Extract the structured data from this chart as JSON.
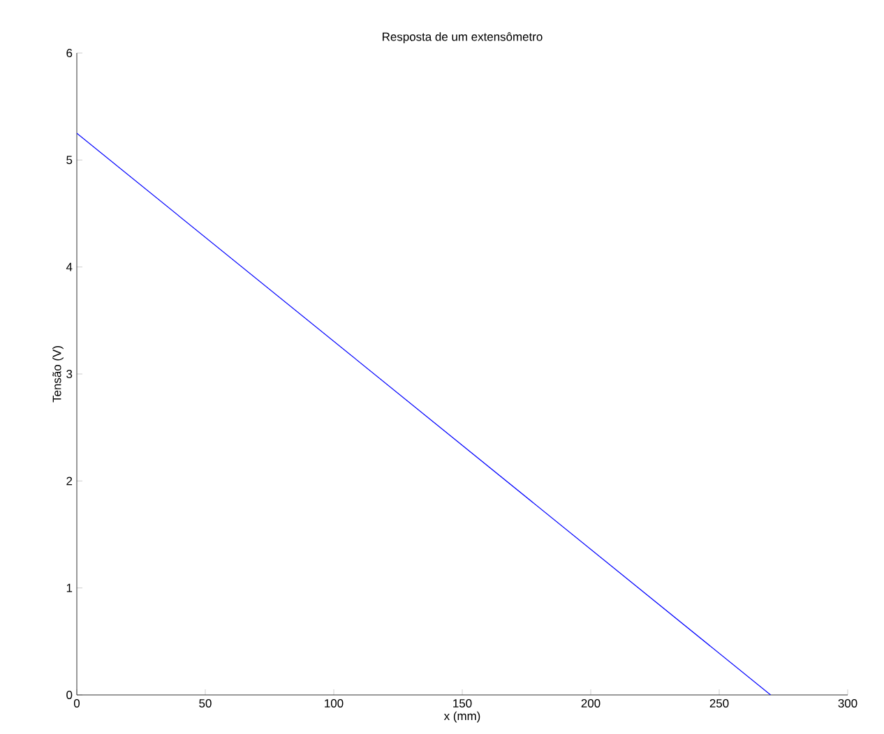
{
  "chart_data": {
    "type": "line",
    "title": "Resposta de um extensômetro",
    "xlabel": "x (mm)",
    "ylabel": "Tensão (V)",
    "x": [
      0,
      270
    ],
    "series": [
      {
        "color": "#0000ff",
        "values": [
          5.25,
          0
        ]
      }
    ],
    "xlim": [
      0,
      300
    ],
    "ylim": [
      0,
      6
    ],
    "xticks": [
      0,
      50,
      100,
      150,
      200,
      250,
      300
    ],
    "yticks": [
      0,
      1,
      2,
      3,
      4,
      5,
      6
    ],
    "grid": false,
    "marker": "none",
    "line_style": "solid"
  }
}
